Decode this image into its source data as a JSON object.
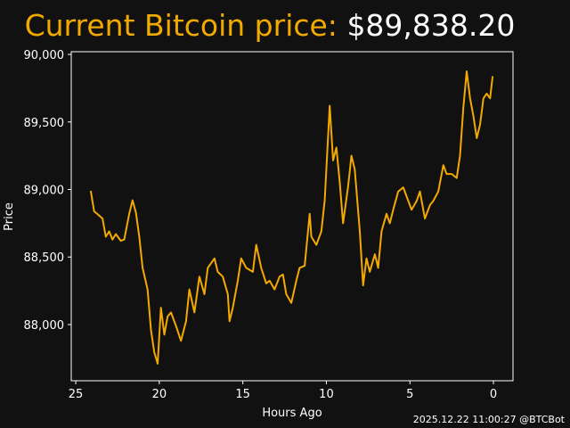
{
  "chart_data": {
    "type": "line",
    "title": "Current Bitcoin price:",
    "price": "$89,838.20",
    "footer": "2025.12.22 11:00:27 @BTCBot",
    "x_label": "Hours Ago",
    "y_label": "Price",
    "color": "#f2a900",
    "x": [
      24.1,
      23.9,
      23.7,
      23.4,
      23.2,
      23.0,
      22.8,
      22.6,
      22.3,
      22.1,
      21.8,
      21.6,
      21.4,
      21.2,
      21.0,
      20.7,
      20.5,
      20.3,
      20.1,
      19.9,
      19.7,
      19.5,
      19.3,
      19.0,
      18.7,
      18.4,
      18.2,
      17.9,
      17.6,
      17.3,
      17.1,
      16.7,
      16.5,
      16.2,
      15.9,
      15.8,
      15.6,
      15.3,
      15.1,
      14.8,
      14.4,
      14.2,
      13.9,
      13.6,
      13.4,
      13.1,
      12.8,
      12.6,
      12.4,
      12.1,
      11.8,
      11.6,
      11.3,
      11.0,
      10.9,
      10.6,
      10.3,
      10.1,
      9.8,
      9.6,
      9.4,
      9.2,
      9.0,
      8.7,
      8.5,
      8.3,
      8.0,
      7.8,
      7.6,
      7.4,
      7.1,
      6.9,
      6.7,
      6.4,
      6.2,
      6.0,
      5.7,
      5.4,
      5.2,
      4.9,
      4.6,
      4.4,
      4.1,
      3.8,
      3.6,
      3.3,
      3.0,
      2.8,
      2.5,
      2.2,
      2.0,
      1.8,
      1.6,
      1.4,
      1.2,
      1.0,
      0.8,
      0.6,
      0.4,
      0.2,
      0.05
    ],
    "values": [
      88990,
      88838,
      88818,
      88785,
      88650,
      88690,
      88630,
      88670,
      88620,
      88630,
      88820,
      88920,
      88830,
      88650,
      88420,
      88260,
      87960,
      87795,
      87710,
      88125,
      87925,
      88060,
      88090,
      87990,
      87880,
      88025,
      88260,
      88090,
      88355,
      88225,
      88420,
      88490,
      88390,
      88355,
      88225,
      88025,
      88125,
      88325,
      88490,
      88420,
      88390,
      88590,
      88420,
      88305,
      88325,
      88260,
      88355,
      88370,
      88225,
      88160,
      88325,
      88420,
      88435,
      88820,
      88650,
      88590,
      88690,
      88920,
      89620,
      89215,
      89310,
      89050,
      88750,
      89020,
      89250,
      89150,
      88690,
      88290,
      88490,
      88390,
      88520,
      88420,
      88690,
      88820,
      88750,
      88850,
      88985,
      89015,
      88950,
      88850,
      88915,
      88985,
      88785,
      88885,
      88915,
      88985,
      89180,
      89115,
      89115,
      89085,
      89250,
      89610,
      89875,
      89675,
      89545,
      89380,
      89480,
      89675,
      89710,
      89675,
      89838.2
    ],
    "xlim": [
      25.27,
      -1.17
    ],
    "xticks": [
      25,
      20,
      15,
      10,
      5,
      0
    ],
    "ylim": [
      87584,
      90020
    ],
    "yticks": [
      {
        "value": 88000,
        "label": "88,000"
      },
      {
        "value": 88500,
        "label": "88,500"
      },
      {
        "value": 89000,
        "label": "89,000"
      },
      {
        "value": 89500,
        "label": "89,500"
      },
      {
        "value": 90000,
        "label": "90,000"
      }
    ]
  }
}
